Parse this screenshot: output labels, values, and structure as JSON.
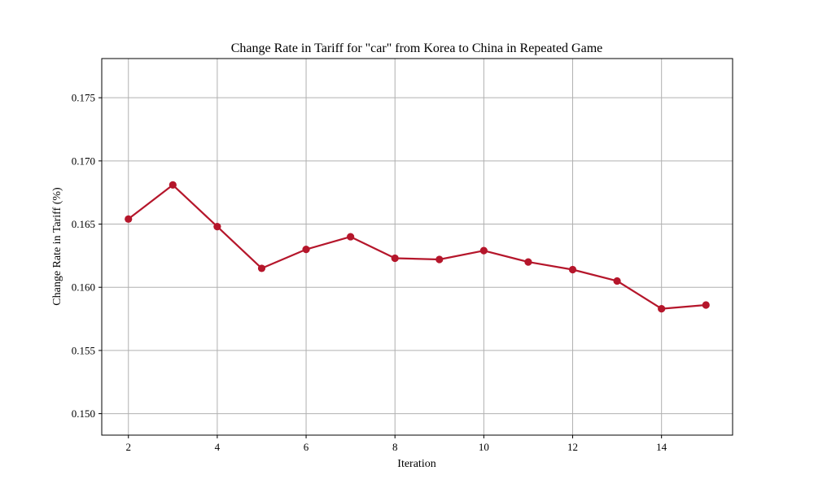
{
  "chart_data": {
    "type": "line",
    "title": "Change Rate in Tariff for \"car\" from Korea to China in Repeated Game",
    "xlabel": "Iteration",
    "ylabel": "Change Rate in Tariff (%)",
    "xlim": [
      1.4,
      15.6
    ],
    "ylim": [
      0.1483,
      0.1781
    ],
    "xticks": [
      2,
      4,
      6,
      8,
      10,
      12,
      14
    ],
    "xtick_labels": [
      "2",
      "4",
      "6",
      "8",
      "10",
      "12",
      "14"
    ],
    "yticks": [
      0.15,
      0.155,
      0.16,
      0.165,
      0.17,
      0.175
    ],
    "ytick_labels": [
      "0.150",
      "0.155",
      "0.160",
      "0.165",
      "0.170",
      "0.175"
    ],
    "grid": true,
    "series": [
      {
        "color": "#b5162b",
        "marker": "circle",
        "x": [
          2,
          3,
          4,
          5,
          6,
          7,
          8,
          9,
          10,
          11,
          12,
          13,
          14,
          15
        ],
        "y": [
          0.1654,
          0.1681,
          0.1648,
          0.1615,
          0.163,
          0.164,
          0.1623,
          0.1622,
          0.1629,
          0.162,
          0.1614,
          0.1605,
          0.1583,
          0.1586
        ]
      }
    ]
  }
}
